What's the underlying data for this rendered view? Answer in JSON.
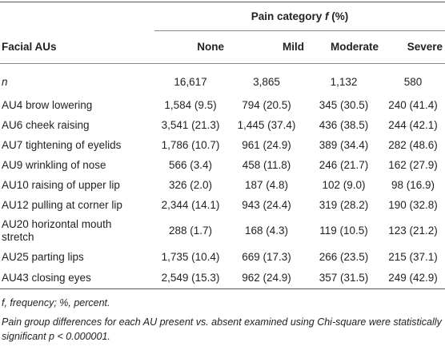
{
  "table": {
    "group_header": [
      "Pain category",
      "f",
      "(%)"
    ],
    "columns": [
      "Facial AUs",
      "None",
      "Mild",
      "Moderate",
      "Severe"
    ],
    "rows": [
      [
        "n",
        "16,617",
        "3,865",
        "1,132",
        "580"
      ],
      [
        "AU4 brow lowering",
        "1,584 (9.5)",
        "794 (20.5)",
        "345 (30.5)",
        "240 (41.4)"
      ],
      [
        "AU6 cheek raising",
        "3,541 (21.3)",
        "1,445 (37.4)",
        "436 (38.5)",
        "244 (42.1)"
      ],
      [
        "AU7 tightening of eyelids",
        "1,786 (10.7)",
        "961 (24.9)",
        "389 (34.4)",
        "282 (48.6)"
      ],
      [
        "AU9 wrinkling of nose",
        "566 (3.4)",
        "458 (11.8)",
        "246 (21.7)",
        "162 (27.9)"
      ],
      [
        "AU10 raising of upper lip",
        "326 (2.0)",
        "187 (4.8)",
        "102 (9.0)",
        "98 (16.9)"
      ],
      [
        "AU12 pulling at corner lip",
        "2,344 (14.1)",
        "943 (24.4)",
        "319 (28.2)",
        "190 (32.8)"
      ],
      [
        "AU20 horizontal mouth stretch",
        "288 (1.7)",
        "168 (4.3)",
        "119 (10.5)",
        "123 (21.2)"
      ],
      [
        "AU25 parting lips",
        "1,735 (10.4)",
        "669 (17.3)",
        "266 (23.5)",
        "215 (37.1)"
      ],
      [
        "AU43 closing eyes",
        "2,549 (15.3)",
        "962 (24.9)",
        "357 (31.5)",
        "249 (42.9)"
      ]
    ],
    "footnotes": [
      "f, frequency; %, percent.",
      "Pain group differences for each AU present vs. absent examined using Chi-square were statistically significant p < 0.000001."
    ]
  }
}
